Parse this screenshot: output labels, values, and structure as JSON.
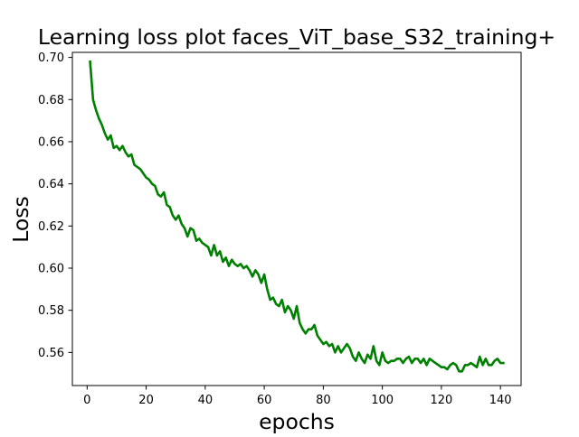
{
  "chart_data": {
    "type": "line",
    "title": "Learning loss plot faces_ViT_base_S32_training+",
    "xlabel": "epochs",
    "ylabel": "Loss",
    "xlim": [
      -5,
      147
    ],
    "ylim": [
      0.5443,
      0.7024
    ],
    "xticks": [
      0,
      20,
      40,
      60,
      80,
      100,
      120,
      140
    ],
    "yticks": [
      0.56,
      0.58,
      0.6,
      0.62,
      0.64,
      0.66,
      0.68,
      0.7
    ],
    "ytick_labels": [
      "0.56",
      "0.58",
      "0.60",
      "0.62",
      "0.64",
      "0.66",
      "0.68",
      "0.70"
    ],
    "grid": false,
    "legend": "none",
    "series": [
      {
        "color": "#008000",
        "x": [
          1,
          2,
          3,
          4,
          5,
          6,
          7,
          8,
          9,
          10,
          11,
          12,
          13,
          14,
          15,
          16,
          17,
          18,
          19,
          20,
          21,
          22,
          23,
          24,
          25,
          26,
          27,
          28,
          29,
          30,
          31,
          32,
          33,
          34,
          35,
          36,
          37,
          38,
          39,
          40,
          41,
          42,
          43,
          44,
          45,
          46,
          47,
          48,
          49,
          50,
          51,
          52,
          53,
          54,
          55,
          56,
          57,
          58,
          59,
          60,
          61,
          62,
          63,
          64,
          65,
          66,
          67,
          68,
          69,
          70,
          71,
          72,
          73,
          74,
          75,
          76,
          77,
          78,
          79,
          80,
          81,
          82,
          83,
          84,
          85,
          86,
          87,
          88,
          89,
          90,
          91,
          92,
          93,
          94,
          95,
          96,
          97,
          98,
          99,
          100,
          101,
          102,
          103,
          104,
          105,
          106,
          107,
          108,
          109,
          110,
          111,
          112,
          113,
          114,
          115,
          116,
          117,
          118,
          119,
          120,
          121,
          122,
          123,
          124,
          125,
          126,
          127,
          128,
          129,
          130,
          131,
          132,
          133,
          134,
          135,
          136,
          137,
          138,
          139,
          140,
          141
        ],
        "values": [
          0.698,
          0.68,
          0.675,
          0.671,
          0.668,
          0.664,
          0.661,
          0.663,
          0.657,
          0.658,
          0.656,
          0.658,
          0.655,
          0.653,
          0.654,
          0.649,
          0.648,
          0.647,
          0.645,
          0.643,
          0.642,
          0.64,
          0.639,
          0.635,
          0.634,
          0.636,
          0.63,
          0.629,
          0.625,
          0.623,
          0.625,
          0.621,
          0.619,
          0.615,
          0.619,
          0.618,
          0.613,
          0.614,
          0.612,
          0.611,
          0.61,
          0.606,
          0.611,
          0.606,
          0.608,
          0.603,
          0.605,
          0.601,
          0.604,
          0.602,
          0.601,
          0.602,
          0.6,
          0.601,
          0.599,
          0.596,
          0.599,
          0.597,
          0.593,
          0.597,
          0.59,
          0.585,
          0.586,
          0.583,
          0.582,
          0.585,
          0.579,
          0.582,
          0.58,
          0.576,
          0.582,
          0.574,
          0.571,
          0.569,
          0.571,
          0.571,
          0.573,
          0.568,
          0.566,
          0.564,
          0.565,
          0.563,
          0.564,
          0.56,
          0.563,
          0.56,
          0.562,
          0.564,
          0.562,
          0.558,
          0.556,
          0.56,
          0.557,
          0.555,
          0.559,
          0.557,
          0.563,
          0.556,
          0.554,
          0.56,
          0.556,
          0.555,
          0.556,
          0.556,
          0.557,
          0.557,
          0.555,
          0.557,
          0.558,
          0.555,
          0.557,
          0.557,
          0.555,
          0.557,
          0.554,
          0.557,
          0.556,
          0.555,
          0.554,
          0.553,
          0.553,
          0.552,
          0.554,
          0.555,
          0.554,
          0.551,
          0.551,
          0.554,
          0.554,
          0.555,
          0.554,
          0.553,
          0.558,
          0.554,
          0.557,
          0.554,
          0.554,
          0.556,
          0.557,
          0.555,
          0.555
        ]
      }
    ]
  }
}
